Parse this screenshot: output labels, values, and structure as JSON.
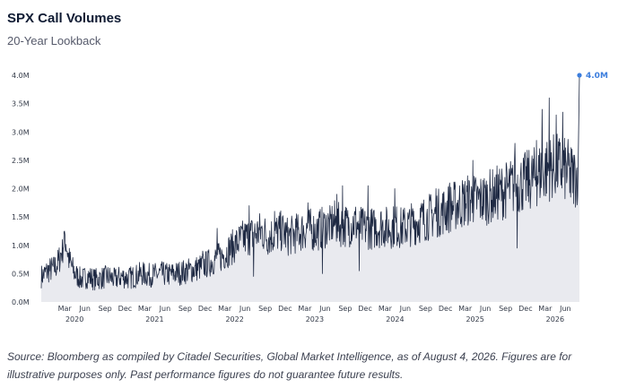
{
  "header": {
    "title": "SPX Call Volumes",
    "subtitle": "20-Year Lookback"
  },
  "footnote": "Source: Bloomberg as compiled by Citadel Securities, Global Market Intelligence, as of August 4, 2026. Figures are for illustrative purposes only. Past performance figures do not guarantee future results.",
  "colors": {
    "line": "#1f2a44",
    "area": "#e9eaef",
    "highlight": "#3b7ddd",
    "text": "#333a48"
  },
  "chart_data": {
    "type": "line",
    "title": "SPX Call Volumes",
    "subtitle": "20-Year Lookback",
    "units": "millions of contracts",
    "xlim": [
      "2019-11-15",
      "2026-08-04"
    ],
    "ylim": [
      0,
      4.0
    ],
    "y_ticks": [
      0,
      0.5,
      1.0,
      1.5,
      2.0,
      2.5,
      3.0,
      3.5,
      4.0
    ],
    "y_tick_labels": [
      "0.0M",
      "0.5M",
      "1.0M",
      "1.5M",
      "2.0M",
      "2.5M",
      "3.0M",
      "3.5M",
      "4.0M"
    ],
    "x_month_ticks": [
      {
        "date": "2020-03-01",
        "label": "Mar"
      },
      {
        "date": "2020-06-01",
        "label": "Jun"
      },
      {
        "date": "2020-09-01",
        "label": "Sep"
      },
      {
        "date": "2020-12-01",
        "label": "Dec"
      },
      {
        "date": "2021-03-01",
        "label": "Mar"
      },
      {
        "date": "2021-06-01",
        "label": "Jun"
      },
      {
        "date": "2021-09-01",
        "label": "Sep"
      },
      {
        "date": "2021-12-01",
        "label": "Dec"
      },
      {
        "date": "2022-03-01",
        "label": "Mar"
      },
      {
        "date": "2022-06-01",
        "label": "Jun"
      },
      {
        "date": "2022-09-01",
        "label": "Sep"
      },
      {
        "date": "2022-12-01",
        "label": "Dec"
      },
      {
        "date": "2023-03-01",
        "label": "Mar"
      },
      {
        "date": "2023-06-01",
        "label": "Jun"
      },
      {
        "date": "2023-09-01",
        "label": "Sep"
      },
      {
        "date": "2023-12-01",
        "label": "Dec"
      },
      {
        "date": "2024-03-01",
        "label": "Mar"
      },
      {
        "date": "2024-06-01",
        "label": "Jun"
      },
      {
        "date": "2024-09-01",
        "label": "Sep"
      },
      {
        "date": "2024-12-01",
        "label": "Dec"
      },
      {
        "date": "2025-03-01",
        "label": "Mar"
      },
      {
        "date": "2025-06-01",
        "label": "Jun"
      },
      {
        "date": "2025-09-01",
        "label": "Sep"
      },
      {
        "date": "2025-12-01",
        "label": "Dec"
      },
      {
        "date": "2026-03-01",
        "label": "Mar"
      },
      {
        "date": "2026-06-01",
        "label": "Jun"
      }
    ],
    "x_year_labels": [
      {
        "date": "2020-04-15",
        "label": "2020"
      },
      {
        "date": "2021-04-15",
        "label": "2021"
      },
      {
        "date": "2022-04-15",
        "label": "2022"
      },
      {
        "date": "2023-04-15",
        "label": "2023"
      },
      {
        "date": "2024-04-15",
        "label": "2024"
      },
      {
        "date": "2025-04-15",
        "label": "2025"
      },
      {
        "date": "2026-04-15",
        "label": "2026"
      }
    ],
    "grid": false,
    "legend": "none",
    "series": [
      {
        "values_description_free": true,
        "points": [
          [
            "2019-11-15",
            0.45
          ],
          [
            "2019-12-15",
            0.55
          ],
          [
            "2020-01-15",
            0.6
          ],
          [
            "2020-02-01",
            0.7
          ],
          [
            "2020-02-20",
            0.95
          ],
          [
            "2020-03-01",
            1.2
          ],
          [
            "2020-03-20",
            0.75
          ],
          [
            "2020-04-15",
            0.5
          ],
          [
            "2020-05-15",
            0.4
          ],
          [
            "2020-06-15",
            0.45
          ],
          [
            "2020-07-15",
            0.4
          ],
          [
            "2020-08-15",
            0.42
          ],
          [
            "2020-09-15",
            0.45
          ],
          [
            "2020-10-15",
            0.4
          ],
          [
            "2020-11-15",
            0.45
          ],
          [
            "2020-12-15",
            0.42
          ],
          [
            "2021-01-15",
            0.45
          ],
          [
            "2021-02-15",
            0.5
          ],
          [
            "2021-03-15",
            0.47
          ],
          [
            "2021-04-15",
            0.48
          ],
          [
            "2021-05-15",
            0.5
          ],
          [
            "2021-06-15",
            0.48
          ],
          [
            "2021-07-15",
            0.5
          ],
          [
            "2021-08-15",
            0.52
          ],
          [
            "2021-09-15",
            0.55
          ],
          [
            "2021-10-15",
            0.58
          ],
          [
            "2021-11-15",
            0.62
          ],
          [
            "2021-12-15",
            0.68
          ],
          [
            "2022-01-15",
            0.75
          ],
          [
            "2022-02-15",
            0.8
          ],
          [
            "2022-03-15",
            0.9
          ],
          [
            "2022-04-15",
            1.0
          ],
          [
            "2022-05-15",
            1.1
          ],
          [
            "2022-06-15",
            1.15
          ],
          [
            "2022-07-15",
            1.2
          ],
          [
            "2022-08-15",
            1.25
          ],
          [
            "2022-09-15",
            1.15
          ],
          [
            "2022-10-15",
            1.2
          ],
          [
            "2022-11-15",
            1.25
          ],
          [
            "2022-12-15",
            1.15
          ],
          [
            "2023-01-15",
            1.2
          ],
          [
            "2023-02-15",
            1.25
          ],
          [
            "2023-03-15",
            1.3
          ],
          [
            "2023-04-15",
            1.25
          ],
          [
            "2023-05-15",
            1.3
          ],
          [
            "2023-06-15",
            1.35
          ],
          [
            "2023-07-15",
            1.4
          ],
          [
            "2023-08-15",
            1.35
          ],
          [
            "2023-09-15",
            1.35
          ],
          [
            "2023-10-15",
            1.4
          ],
          [
            "2023-11-15",
            1.3
          ],
          [
            "2023-12-15",
            1.3
          ],
          [
            "2024-01-15",
            1.3
          ],
          [
            "2024-02-15",
            1.35
          ],
          [
            "2024-03-15",
            1.3
          ],
          [
            "2024-04-15",
            1.35
          ],
          [
            "2024-05-15",
            1.3
          ],
          [
            "2024-06-15",
            1.35
          ],
          [
            "2024-07-15",
            1.4
          ],
          [
            "2024-08-15",
            1.45
          ],
          [
            "2024-09-15",
            1.5
          ],
          [
            "2024-10-15",
            1.55
          ],
          [
            "2024-11-15",
            1.6
          ],
          [
            "2024-12-15",
            1.65
          ],
          [
            "2025-01-15",
            1.7
          ],
          [
            "2025-02-15",
            1.75
          ],
          [
            "2025-03-15",
            1.8
          ],
          [
            "2025-04-15",
            1.8
          ],
          [
            "2025-05-15",
            1.8
          ],
          [
            "2025-06-15",
            1.85
          ],
          [
            "2025-07-15",
            1.9
          ],
          [
            "2025-08-15",
            1.95
          ],
          [
            "2025-09-15",
            2.0
          ],
          [
            "2025-10-15",
            2.05
          ],
          [
            "2025-11-15",
            2.1
          ],
          [
            "2025-12-15",
            2.15
          ],
          [
            "2026-01-15",
            2.2
          ],
          [
            "2026-02-15",
            2.3
          ],
          [
            "2026-03-15",
            2.35
          ],
          [
            "2026-04-15",
            2.4
          ],
          [
            "2026-05-15",
            2.35
          ],
          [
            "2026-06-15",
            2.3
          ],
          [
            "2026-07-15",
            2.2
          ],
          [
            "2026-07-28",
            2.3
          ],
          [
            "2026-08-04",
            4.0
          ]
        ],
        "spikes": [
          [
            "2020-03-01",
            1.25
          ],
          [
            "2020-02-20",
            1.1
          ],
          [
            "2021-11-20",
            0.9
          ],
          [
            "2022-01-25",
            1.3
          ],
          [
            "2022-06-20",
            1.7
          ],
          [
            "2022-07-10",
            0.45
          ],
          [
            "2022-10-15",
            1.6
          ],
          [
            "2023-03-15",
            1.75
          ],
          [
            "2023-05-20",
            0.5
          ],
          [
            "2023-06-25",
            1.6
          ],
          [
            "2023-07-25",
            1.9
          ],
          [
            "2023-08-20",
            2.05
          ],
          [
            "2023-11-05",
            0.55
          ],
          [
            "2023-12-15",
            2.05
          ],
          [
            "2024-04-15",
            2.0
          ],
          [
            "2024-10-20",
            2.0
          ],
          [
            "2024-12-20",
            2.1
          ],
          [
            "2025-04-05",
            2.5
          ],
          [
            "2025-07-15",
            2.2
          ],
          [
            "2025-10-15",
            2.8
          ],
          [
            "2025-10-25",
            0.95
          ],
          [
            "2026-01-20",
            2.85
          ],
          [
            "2026-02-15",
            3.4
          ],
          [
            "2026-03-20",
            3.6
          ],
          [
            "2026-04-20",
            3.3
          ],
          [
            "2026-05-20",
            3.35
          ],
          [
            "2026-06-25",
            1.85
          ]
        ]
      }
    ],
    "last_point": {
      "date": "2026-08-04",
      "value": 4.0,
      "label": "4.0M"
    }
  }
}
